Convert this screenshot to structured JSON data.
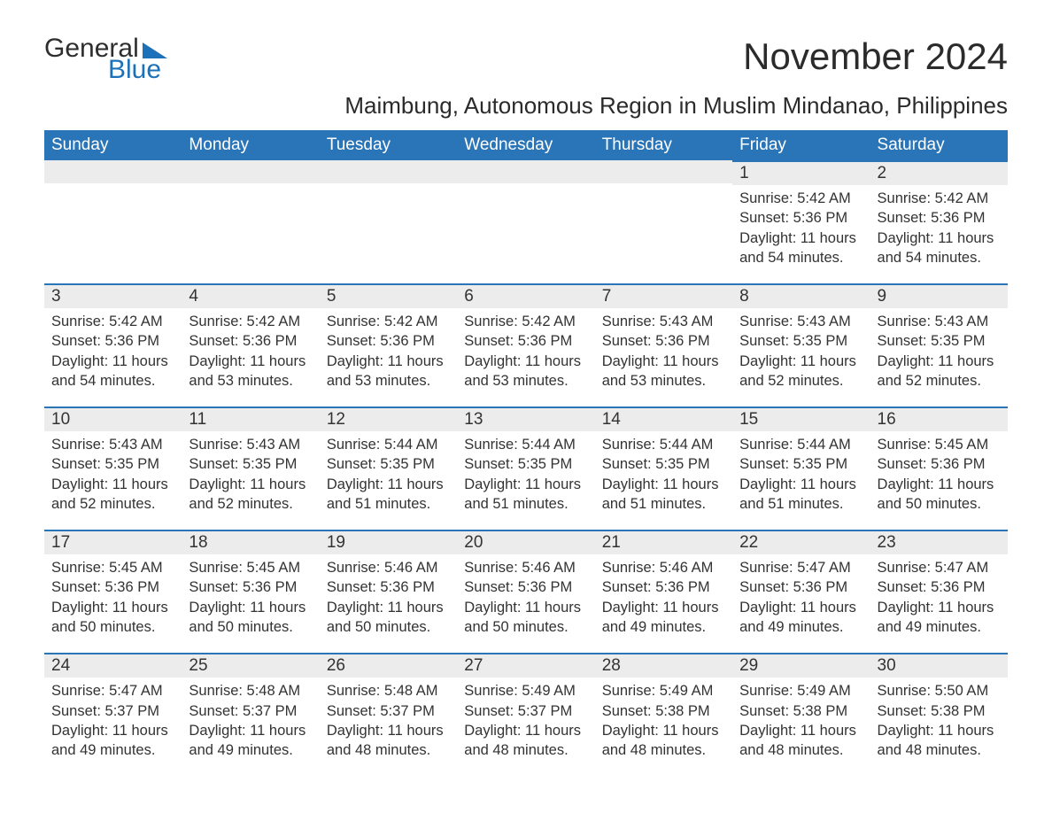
{
  "logo": {
    "text1": "General",
    "text2": "Blue"
  },
  "title": "November 2024",
  "subtitle": "Maimbung, Autonomous Region in Muslim Mindanao, Philippines",
  "colors": {
    "header_bg": "#2a74b8",
    "header_text": "#ffffff",
    "daynum_bg": "#ececec",
    "cell_border": "#2a74b8",
    "text": "#333333",
    "logo_blue": "#1d71b8",
    "page_bg": "#ffffff"
  },
  "typography": {
    "title_fontsize": 42,
    "subtitle_fontsize": 26,
    "header_fontsize": 19,
    "daynum_fontsize": 19,
    "body_fontsize": 16.5
  },
  "weekdays": [
    "Sunday",
    "Monday",
    "Tuesday",
    "Wednesday",
    "Thursday",
    "Friday",
    "Saturday"
  ],
  "weeks": [
    [
      null,
      null,
      null,
      null,
      null,
      {
        "n": "1",
        "sunrise": "Sunrise: 5:42 AM",
        "sunset": "Sunset: 5:36 PM",
        "daylight": "Daylight: 11 hours and 54 minutes."
      },
      {
        "n": "2",
        "sunrise": "Sunrise: 5:42 AM",
        "sunset": "Sunset: 5:36 PM",
        "daylight": "Daylight: 11 hours and 54 minutes."
      }
    ],
    [
      {
        "n": "3",
        "sunrise": "Sunrise: 5:42 AM",
        "sunset": "Sunset: 5:36 PM",
        "daylight": "Daylight: 11 hours and 54 minutes."
      },
      {
        "n": "4",
        "sunrise": "Sunrise: 5:42 AM",
        "sunset": "Sunset: 5:36 PM",
        "daylight": "Daylight: 11 hours and 53 minutes."
      },
      {
        "n": "5",
        "sunrise": "Sunrise: 5:42 AM",
        "sunset": "Sunset: 5:36 PM",
        "daylight": "Daylight: 11 hours and 53 minutes."
      },
      {
        "n": "6",
        "sunrise": "Sunrise: 5:42 AM",
        "sunset": "Sunset: 5:36 PM",
        "daylight": "Daylight: 11 hours and 53 minutes."
      },
      {
        "n": "7",
        "sunrise": "Sunrise: 5:43 AM",
        "sunset": "Sunset: 5:36 PM",
        "daylight": "Daylight: 11 hours and 53 minutes."
      },
      {
        "n": "8",
        "sunrise": "Sunrise: 5:43 AM",
        "sunset": "Sunset: 5:35 PM",
        "daylight": "Daylight: 11 hours and 52 minutes."
      },
      {
        "n": "9",
        "sunrise": "Sunrise: 5:43 AM",
        "sunset": "Sunset: 5:35 PM",
        "daylight": "Daylight: 11 hours and 52 minutes."
      }
    ],
    [
      {
        "n": "10",
        "sunrise": "Sunrise: 5:43 AM",
        "sunset": "Sunset: 5:35 PM",
        "daylight": "Daylight: 11 hours and 52 minutes."
      },
      {
        "n": "11",
        "sunrise": "Sunrise: 5:43 AM",
        "sunset": "Sunset: 5:35 PM",
        "daylight": "Daylight: 11 hours and 52 minutes."
      },
      {
        "n": "12",
        "sunrise": "Sunrise: 5:44 AM",
        "sunset": "Sunset: 5:35 PM",
        "daylight": "Daylight: 11 hours and 51 minutes."
      },
      {
        "n": "13",
        "sunrise": "Sunrise: 5:44 AM",
        "sunset": "Sunset: 5:35 PM",
        "daylight": "Daylight: 11 hours and 51 minutes."
      },
      {
        "n": "14",
        "sunrise": "Sunrise: 5:44 AM",
        "sunset": "Sunset: 5:35 PM",
        "daylight": "Daylight: 11 hours and 51 minutes."
      },
      {
        "n": "15",
        "sunrise": "Sunrise: 5:44 AM",
        "sunset": "Sunset: 5:35 PM",
        "daylight": "Daylight: 11 hours and 51 minutes."
      },
      {
        "n": "16",
        "sunrise": "Sunrise: 5:45 AM",
        "sunset": "Sunset: 5:36 PM",
        "daylight": "Daylight: 11 hours and 50 minutes."
      }
    ],
    [
      {
        "n": "17",
        "sunrise": "Sunrise: 5:45 AM",
        "sunset": "Sunset: 5:36 PM",
        "daylight": "Daylight: 11 hours and 50 minutes."
      },
      {
        "n": "18",
        "sunrise": "Sunrise: 5:45 AM",
        "sunset": "Sunset: 5:36 PM",
        "daylight": "Daylight: 11 hours and 50 minutes."
      },
      {
        "n": "19",
        "sunrise": "Sunrise: 5:46 AM",
        "sunset": "Sunset: 5:36 PM",
        "daylight": "Daylight: 11 hours and 50 minutes."
      },
      {
        "n": "20",
        "sunrise": "Sunrise: 5:46 AM",
        "sunset": "Sunset: 5:36 PM",
        "daylight": "Daylight: 11 hours and 50 minutes."
      },
      {
        "n": "21",
        "sunrise": "Sunrise: 5:46 AM",
        "sunset": "Sunset: 5:36 PM",
        "daylight": "Daylight: 11 hours and 49 minutes."
      },
      {
        "n": "22",
        "sunrise": "Sunrise: 5:47 AM",
        "sunset": "Sunset: 5:36 PM",
        "daylight": "Daylight: 11 hours and 49 minutes."
      },
      {
        "n": "23",
        "sunrise": "Sunrise: 5:47 AM",
        "sunset": "Sunset: 5:36 PM",
        "daylight": "Daylight: 11 hours and 49 minutes."
      }
    ],
    [
      {
        "n": "24",
        "sunrise": "Sunrise: 5:47 AM",
        "sunset": "Sunset: 5:37 PM",
        "daylight": "Daylight: 11 hours and 49 minutes."
      },
      {
        "n": "25",
        "sunrise": "Sunrise: 5:48 AM",
        "sunset": "Sunset: 5:37 PM",
        "daylight": "Daylight: 11 hours and 49 minutes."
      },
      {
        "n": "26",
        "sunrise": "Sunrise: 5:48 AM",
        "sunset": "Sunset: 5:37 PM",
        "daylight": "Daylight: 11 hours and 48 minutes."
      },
      {
        "n": "27",
        "sunrise": "Sunrise: 5:49 AM",
        "sunset": "Sunset: 5:37 PM",
        "daylight": "Daylight: 11 hours and 48 minutes."
      },
      {
        "n": "28",
        "sunrise": "Sunrise: 5:49 AM",
        "sunset": "Sunset: 5:38 PM",
        "daylight": "Daylight: 11 hours and 48 minutes."
      },
      {
        "n": "29",
        "sunrise": "Sunrise: 5:49 AM",
        "sunset": "Sunset: 5:38 PM",
        "daylight": "Daylight: 11 hours and 48 minutes."
      },
      {
        "n": "30",
        "sunrise": "Sunrise: 5:50 AM",
        "sunset": "Sunset: 5:38 PM",
        "daylight": "Daylight: 11 hours and 48 minutes."
      }
    ]
  ]
}
